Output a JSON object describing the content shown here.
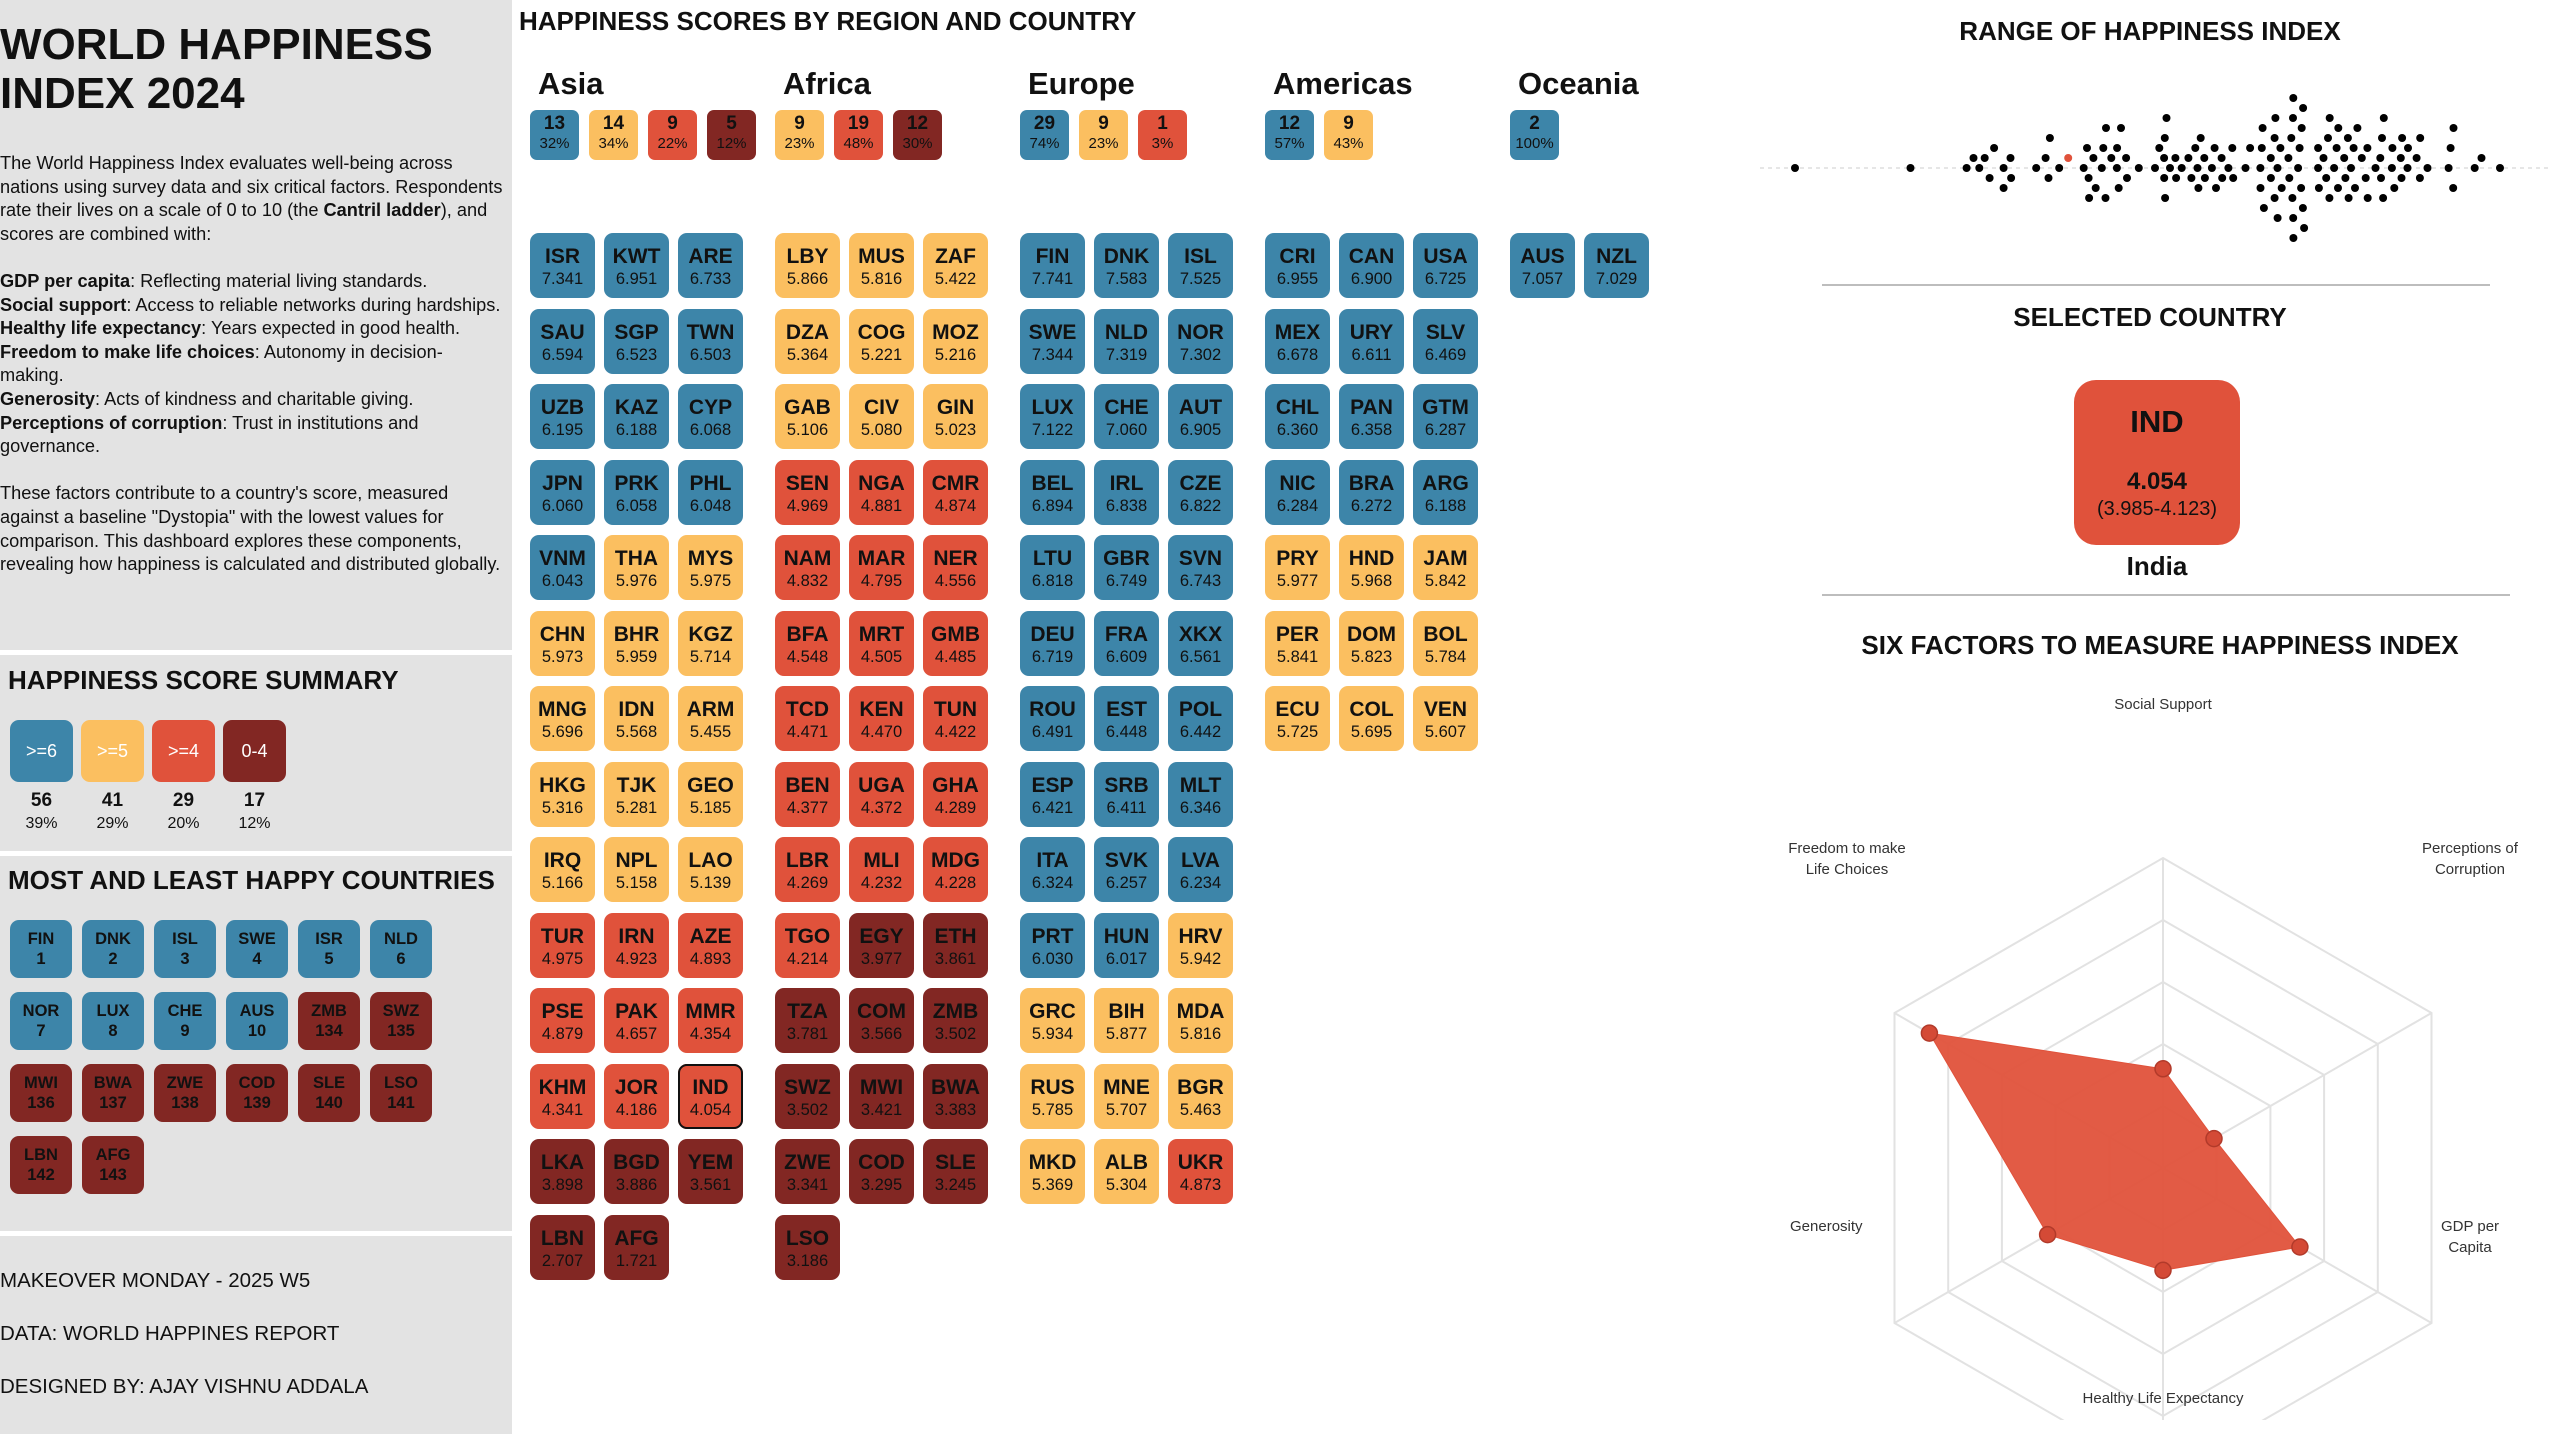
{
  "colors": {
    "ge6": "#3d85a9",
    "ge5": "#fbbf60",
    "ge4": "#e0523b",
    "lt4": "#822723",
    "panel": "#e3e3e3"
  },
  "left": {
    "title_line1": "WORLD HAPPINESS",
    "title_line2": "INDEX 2024",
    "intro_p1_a": "The World Happiness Index evaluates well-being across nations using survey data and six critical factors. Respondents rate their lives on a scale of 0 to 10 (the ",
    "intro_p1_b": "Cantril ladder",
    "intro_p1_c": "), and scores are combined with:",
    "factors": [
      {
        "name": "GDP per capita",
        "desc": ": Reflecting material living standards."
      },
      {
        "name": "Social support",
        "desc": ": Access to reliable networks during hardships."
      },
      {
        "name": "Healthy life expectancy",
        "desc": ": Years expected in good health."
      },
      {
        "name": "Freedom to make life choices",
        "desc": ": Autonomy in decision-making."
      },
      {
        "name": "Generosity",
        "desc": ": Acts of kindness and charitable giving."
      },
      {
        "name": "Perceptions of corruption",
        "desc": ": Trust in institutions and governance."
      }
    ],
    "intro_p3": "These factors contribute to a country's score, measured against a baseline \"Dystopia\" with the lowest values for comparison. This dashboard explores these components, revealing how happiness is calculated and distributed globally.",
    "summary_title": "HAPPINESS SCORE SUMMARY",
    "summary": [
      {
        "label": ">=6",
        "count": "56",
        "pct": "39%",
        "cls": "sb1"
      },
      {
        "label": ">=5",
        "count": "41",
        "pct": "29%",
        "cls": "sb2"
      },
      {
        "label": ">=4",
        "count": "29",
        "pct": "20%",
        "cls": "sb3"
      },
      {
        "label": "0-4",
        "count": "17",
        "pct": "12%",
        "cls": "sb4"
      }
    ],
    "ranks_title": "MOST AND LEAST HAPPY COUNTRIES",
    "ranks": [
      {
        "code": "FIN",
        "rank": "1",
        "cls": "t1"
      },
      {
        "code": "DNK",
        "rank": "2",
        "cls": "t1"
      },
      {
        "code": "ISL",
        "rank": "3",
        "cls": "t1"
      },
      {
        "code": "SWE",
        "rank": "4",
        "cls": "t1"
      },
      {
        "code": "ISR",
        "rank": "5",
        "cls": "t1"
      },
      {
        "code": "NLD",
        "rank": "6",
        "cls": "t1"
      },
      {
        "code": "NOR",
        "rank": "7",
        "cls": "t1"
      },
      {
        "code": "LUX",
        "rank": "8",
        "cls": "t1"
      },
      {
        "code": "CHE",
        "rank": "9",
        "cls": "t1"
      },
      {
        "code": "AUS",
        "rank": "10",
        "cls": "t1"
      },
      {
        "code": "ZMB",
        "rank": "134",
        "cls": "t4"
      },
      {
        "code": "SWZ",
        "rank": "135",
        "cls": "t4"
      },
      {
        "code": "MWI",
        "rank": "136",
        "cls": "t4"
      },
      {
        "code": "BWA",
        "rank": "137",
        "cls": "t4"
      },
      {
        "code": "ZWE",
        "rank": "138",
        "cls": "t4"
      },
      {
        "code": "COD",
        "rank": "139",
        "cls": "t4"
      },
      {
        "code": "SLE",
        "rank": "140",
        "cls": "t4"
      },
      {
        "code": "LSO",
        "rank": "141",
        "cls": "t4"
      },
      {
        "code": "LBN",
        "rank": "142",
        "cls": "t4"
      },
      {
        "code": "AFG",
        "rank": "143",
        "cls": "t4"
      }
    ],
    "footer1": "MAKEOVER MONDAY - 2025 W5",
    "footer2": "DATA: WORLD HAPPINES REPORT",
    "footer3": "DESIGNED BY: AJAY VISHNU ADDALA"
  },
  "center": {
    "title": "HAPPINESS SCORES BY REGION AND COUNTRY",
    "regions": [
      {
        "name": "Asia",
        "badges": [
          {
            "n": "13",
            "p": "32%",
            "cls": "t1"
          },
          {
            "n": "14",
            "p": "34%",
            "cls": "t2"
          },
          {
            "n": "9",
            "p": "22%",
            "cls": "t3"
          },
          {
            "n": "5",
            "p": "12%",
            "cls": "t4"
          }
        ],
        "countries": [
          {
            "c": "ISR",
            "s": "7.341"
          },
          {
            "c": "KWT",
            "s": "6.951"
          },
          {
            "c": "ARE",
            "s": "6.733"
          },
          {
            "c": "SAU",
            "s": "6.594"
          },
          {
            "c": "SGP",
            "s": "6.523"
          },
          {
            "c": "TWN",
            "s": "6.503"
          },
          {
            "c": "UZB",
            "s": "6.195"
          },
          {
            "c": "KAZ",
            "s": "6.188"
          },
          {
            "c": "CYP",
            "s": "6.068"
          },
          {
            "c": "JPN",
            "s": "6.060"
          },
          {
            "c": "PRK",
            "s": "6.058"
          },
          {
            "c": "PHL",
            "s": "6.048"
          },
          {
            "c": "VNM",
            "s": "6.043"
          },
          {
            "c": "THA",
            "s": "5.976"
          },
          {
            "c": "MYS",
            "s": "5.975"
          },
          {
            "c": "CHN",
            "s": "5.973"
          },
          {
            "c": "BHR",
            "s": "5.959"
          },
          {
            "c": "KGZ",
            "s": "5.714"
          },
          {
            "c": "MNG",
            "s": "5.696"
          },
          {
            "c": "IDN",
            "s": "5.568"
          },
          {
            "c": "ARM",
            "s": "5.455"
          },
          {
            "c": "HKG",
            "s": "5.316"
          },
          {
            "c": "TJK",
            "s": "5.281"
          },
          {
            "c": "GEO",
            "s": "5.185"
          },
          {
            "c": "IRQ",
            "s": "5.166"
          },
          {
            "c": "NPL",
            "s": "5.158"
          },
          {
            "c": "LAO",
            "s": "5.139"
          },
          {
            "c": "TUR",
            "s": "4.975"
          },
          {
            "c": "IRN",
            "s": "4.923"
          },
          {
            "c": "AZE",
            "s": "4.893"
          },
          {
            "c": "PSE",
            "s": "4.879"
          },
          {
            "c": "PAK",
            "s": "4.657"
          },
          {
            "c": "MMR",
            "s": "4.354"
          },
          {
            "c": "KHM",
            "s": "4.341"
          },
          {
            "c": "JOR",
            "s": "4.186"
          },
          {
            "c": "IND",
            "s": "4.054",
            "hl": true
          },
          {
            "c": "LKA",
            "s": "3.898"
          },
          {
            "c": "BGD",
            "s": "3.886"
          },
          {
            "c": "YEM",
            "s": "3.561"
          },
          {
            "c": "LBN",
            "s": "2.707"
          },
          {
            "c": "AFG",
            "s": "1.721"
          }
        ]
      },
      {
        "name": "Africa",
        "badges": [
          {
            "n": "9",
            "p": "23%",
            "cls": "t2"
          },
          {
            "n": "19",
            "p": "48%",
            "cls": "t3"
          },
          {
            "n": "12",
            "p": "30%",
            "cls": "t4"
          }
        ],
        "countries": [
          {
            "c": "LBY",
            "s": "5.866"
          },
          {
            "c": "MUS",
            "s": "5.816"
          },
          {
            "c": "ZAF",
            "s": "5.422"
          },
          {
            "c": "DZA",
            "s": "5.364"
          },
          {
            "c": "COG",
            "s": "5.221"
          },
          {
            "c": "MOZ",
            "s": "5.216"
          },
          {
            "c": "GAB",
            "s": "5.106"
          },
          {
            "c": "CIV",
            "s": "5.080"
          },
          {
            "c": "GIN",
            "s": "5.023"
          },
          {
            "c": "SEN",
            "s": "4.969"
          },
          {
            "c": "NGA",
            "s": "4.881"
          },
          {
            "c": "CMR",
            "s": "4.874"
          },
          {
            "c": "NAM",
            "s": "4.832"
          },
          {
            "c": "MAR",
            "s": "4.795"
          },
          {
            "c": "NER",
            "s": "4.556"
          },
          {
            "c": "BFA",
            "s": "4.548"
          },
          {
            "c": "MRT",
            "s": "4.505"
          },
          {
            "c": "GMB",
            "s": "4.485"
          },
          {
            "c": "TCD",
            "s": "4.471"
          },
          {
            "c": "KEN",
            "s": "4.470"
          },
          {
            "c": "TUN",
            "s": "4.422"
          },
          {
            "c": "BEN",
            "s": "4.377"
          },
          {
            "c": "UGA",
            "s": "4.372"
          },
          {
            "c": "GHA",
            "s": "4.289"
          },
          {
            "c": "LBR",
            "s": "4.269"
          },
          {
            "c": "MLI",
            "s": "4.232"
          },
          {
            "c": "MDG",
            "s": "4.228"
          },
          {
            "c": "TGO",
            "s": "4.214"
          },
          {
            "c": "EGY",
            "s": "3.977"
          },
          {
            "c": "ETH",
            "s": "3.861"
          },
          {
            "c": "TZA",
            "s": "3.781"
          },
          {
            "c": "COM",
            "s": "3.566"
          },
          {
            "c": "ZMB",
            "s": "3.502"
          },
          {
            "c": "SWZ",
            "s": "3.502"
          },
          {
            "c": "MWI",
            "s": "3.421"
          },
          {
            "c": "BWA",
            "s": "3.383"
          },
          {
            "c": "ZWE",
            "s": "3.341"
          },
          {
            "c": "COD",
            "s": "3.295"
          },
          {
            "c": "SLE",
            "s": "3.245"
          },
          {
            "c": "LSO",
            "s": "3.186"
          }
        ]
      },
      {
        "name": "Europe",
        "badges": [
          {
            "n": "29",
            "p": "74%",
            "cls": "t1"
          },
          {
            "n": "9",
            "p": "23%",
            "cls": "t2"
          },
          {
            "n": "1",
            "p": "3%",
            "cls": "t3"
          }
        ],
        "countries": [
          {
            "c": "FIN",
            "s": "7.741"
          },
          {
            "c": "DNK",
            "s": "7.583"
          },
          {
            "c": "ISL",
            "s": "7.525"
          },
          {
            "c": "SWE",
            "s": "7.344"
          },
          {
            "c": "NLD",
            "s": "7.319"
          },
          {
            "c": "NOR",
            "s": "7.302"
          },
          {
            "c": "LUX",
            "s": "7.122"
          },
          {
            "c": "CHE",
            "s": "7.060"
          },
          {
            "c": "AUT",
            "s": "6.905"
          },
          {
            "c": "BEL",
            "s": "6.894"
          },
          {
            "c": "IRL",
            "s": "6.838"
          },
          {
            "c": "CZE",
            "s": "6.822"
          },
          {
            "c": "LTU",
            "s": "6.818"
          },
          {
            "c": "GBR",
            "s": "6.749"
          },
          {
            "c": "SVN",
            "s": "6.743"
          },
          {
            "c": "DEU",
            "s": "6.719"
          },
          {
            "c": "FRA",
            "s": "6.609"
          },
          {
            "c": "XKX",
            "s": "6.561"
          },
          {
            "c": "ROU",
            "s": "6.491"
          },
          {
            "c": "EST",
            "s": "6.448"
          },
          {
            "c": "POL",
            "s": "6.442"
          },
          {
            "c": "ESP",
            "s": "6.421"
          },
          {
            "c": "SRB",
            "s": "6.411"
          },
          {
            "c": "MLT",
            "s": "6.346"
          },
          {
            "c": "ITA",
            "s": "6.324"
          },
          {
            "c": "SVK",
            "s": "6.257"
          },
          {
            "c": "LVA",
            "s": "6.234"
          },
          {
            "c": "PRT",
            "s": "6.030"
          },
          {
            "c": "HUN",
            "s": "6.017"
          },
          {
            "c": "HRV",
            "s": "5.942"
          },
          {
            "c": "GRC",
            "s": "5.934"
          },
          {
            "c": "BIH",
            "s": "5.877"
          },
          {
            "c": "MDA",
            "s": "5.816"
          },
          {
            "c": "RUS",
            "s": "5.785"
          },
          {
            "c": "MNE",
            "s": "5.707"
          },
          {
            "c": "BGR",
            "s": "5.463"
          },
          {
            "c": "MKD",
            "s": "5.369"
          },
          {
            "c": "ALB",
            "s": "5.304"
          },
          {
            "c": "UKR",
            "s": "4.873"
          }
        ]
      },
      {
        "name": "Americas",
        "badges": [
          {
            "n": "12",
            "p": "57%",
            "cls": "t1"
          },
          {
            "n": "9",
            "p": "43%",
            "cls": "t2"
          }
        ],
        "countries": [
          {
            "c": "CRI",
            "s": "6.955"
          },
          {
            "c": "CAN",
            "s": "6.900"
          },
          {
            "c": "USA",
            "s": "6.725"
          },
          {
            "c": "MEX",
            "s": "6.678"
          },
          {
            "c": "URY",
            "s": "6.611"
          },
          {
            "c": "SLV",
            "s": "6.469"
          },
          {
            "c": "CHL",
            "s": "6.360"
          },
          {
            "c": "PAN",
            "s": "6.358"
          },
          {
            "c": "GTM",
            "s": "6.287"
          },
          {
            "c": "NIC",
            "s": "6.284"
          },
          {
            "c": "BRA",
            "s": "6.272"
          },
          {
            "c": "ARG",
            "s": "6.188"
          },
          {
            "c": "PRY",
            "s": "5.977"
          },
          {
            "c": "HND",
            "s": "5.968"
          },
          {
            "c": "JAM",
            "s": "5.842"
          },
          {
            "c": "PER",
            "s": "5.841"
          },
          {
            "c": "DOM",
            "s": "5.823"
          },
          {
            "c": "BOL",
            "s": "5.784"
          },
          {
            "c": "ECU",
            "s": "5.725"
          },
          {
            "c": "COL",
            "s": "5.695"
          },
          {
            "c": "VEN",
            "s": "5.607"
          }
        ]
      },
      {
        "name": "Oceania",
        "badges": [
          {
            "n": "2",
            "p": "100%",
            "cls": "t1"
          }
        ],
        "countries": [
          {
            "c": "AUS",
            "s": "7.057"
          },
          {
            "c": "NZL",
            "s": "7.029"
          }
        ]
      }
    ]
  },
  "right": {
    "range_title": "RANGE OF HAPPINESS INDEX",
    "selected_title": "SELECTED COUNTRY",
    "selected": {
      "code": "IND",
      "score": "4.054",
      "range": "(3.985-4.123)",
      "name": "India"
    },
    "factors_title": "SIX FACTORS TO MEASURE HAPPINESS INDEX",
    "radar_labels": {
      "social": "Social Support",
      "corruption_1": "Perceptions of",
      "corruption_2": "Corruption",
      "gdp_1": "GDP per",
      "gdp_2": "Capita",
      "health": "Healthy Life Expectancy",
      "generosity": "Generosity",
      "freedom_1": "Freedom to make",
      "freedom_2": "Life Choices"
    }
  },
  "chart_data": [
    {
      "type": "scatter",
      "title": "RANGE OF HAPPINESS INDEX",
      "description": "beeswarm of country happiness scores, selected country highlighted",
      "highlight": {
        "code": "IND",
        "value": 4.054
      },
      "values": [
        1.721,
        2.707,
        3.186,
        3.245,
        3.295,
        3.341,
        3.383,
        3.421,
        3.502,
        3.502,
        3.561,
        3.566,
        3.781,
        3.861,
        3.886,
        3.898,
        3.977,
        4.054,
        4.186,
        4.214,
        4.228,
        4.232,
        4.269,
        4.289,
        4.341,
        4.354,
        4.372,
        4.377,
        4.422,
        4.47,
        4.471,
        4.485,
        4.505,
        4.548,
        4.556,
        4.657,
        4.795,
        4.832,
        4.873,
        4.874,
        4.879,
        4.881,
        4.893,
        4.923,
        4.969,
        4.975,
        5.023,
        5.08,
        5.106,
        5.139,
        5.158,
        5.166,
        5.185,
        5.216,
        5.221,
        5.281,
        5.304,
        5.316,
        5.364,
        5.369,
        5.422,
        5.455,
        5.463,
        5.568,
        5.607,
        5.695,
        5.696,
        5.707,
        5.714,
        5.725,
        5.784,
        5.785,
        5.816,
        5.816,
        5.823,
        5.841,
        5.842,
        5.866,
        5.877,
        5.934,
        5.942,
        5.959,
        5.968,
        5.973,
        5.975,
        5.976,
        5.977,
        6.017,
        6.03,
        6.043,
        6.048,
        6.058,
        6.06,
        6.068,
        6.188,
        6.188,
        6.195,
        6.234,
        6.257,
        6.272,
        6.284,
        6.287,
        6.324,
        6.346,
        6.358,
        6.36,
        6.411,
        6.421,
        6.442,
        6.448,
        6.469,
        6.491,
        6.503,
        6.523,
        6.561,
        6.594,
        6.609,
        6.611,
        6.678,
        6.719,
        6.725,
        6.733,
        6.743,
        6.749,
        6.818,
        6.822,
        6.838,
        6.894,
        6.9,
        6.905,
        6.951,
        6.955,
        7.029,
        7.057,
        7.06,
        7.122,
        7.302,
        7.319,
        7.341,
        7.344,
        7.525,
        7.583,
        7.741
      ]
    },
    {
      "type": "radar",
      "title": "SIX FACTORS TO MEASURE HAPPINESS INDEX",
      "country": "IND",
      "axes": [
        "Social Support",
        "Perceptions of Corruption",
        "GDP per Capita",
        "Healthy Life Expectancy",
        "Generosity",
        "Freedom to make Life Choices"
      ],
      "values": [
        0.32,
        0.19,
        0.51,
        0.33,
        0.43,
        0.87
      ],
      "max": 1,
      "rings": 5
    }
  ]
}
